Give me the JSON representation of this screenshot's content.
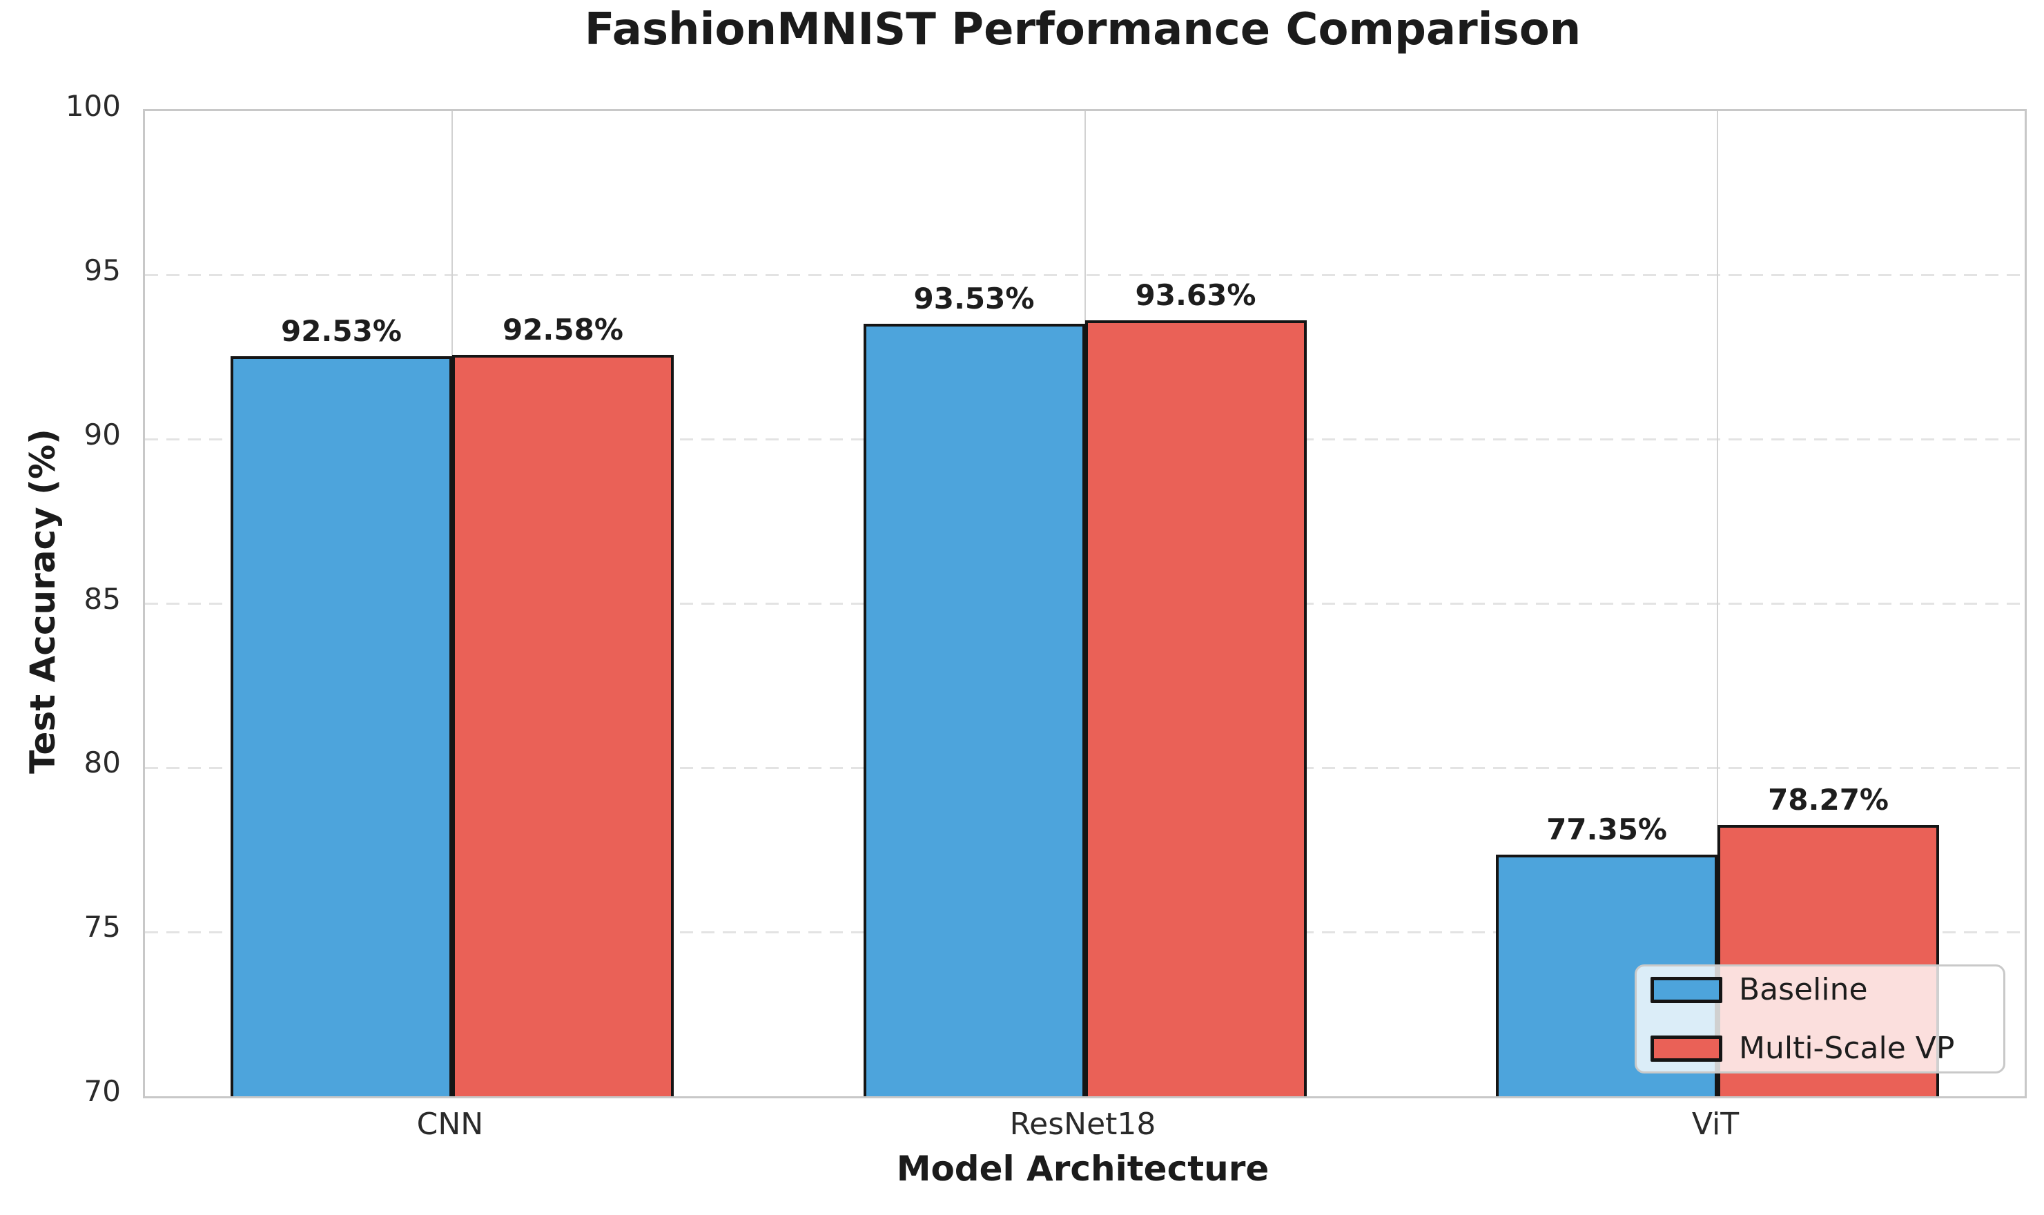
{
  "title": "FashionMNIST Performance Comparison",
  "chart_data": {
    "type": "bar",
    "title": "FashionMNIST Performance Comparison",
    "xlabel": "Model Architecture",
    "ylabel": "Test Accuracy (%)",
    "categories": [
      "CNN",
      "ResNet18",
      "ViT"
    ],
    "series": [
      {
        "name": "Baseline",
        "color": "#4DA4DC",
        "values": [
          92.53,
          93.53,
          77.35
        ]
      },
      {
        "name": "Multi-Scale VP",
        "color": "#EA6157",
        "values": [
          92.58,
          93.63,
          78.27
        ]
      }
    ],
    "value_labels": [
      [
        "92.53%",
        "93.53%",
        "77.35%"
      ],
      [
        "92.58%",
        "93.63%",
        "78.27%"
      ]
    ],
    "ylim": [
      70,
      100
    ],
    "yticks": [
      70,
      75,
      80,
      85,
      90,
      95,
      100
    ],
    "ytick_labels": [
      "70",
      "75",
      "80",
      "85",
      "90",
      "95",
      "100"
    ],
    "grid": true,
    "legend_position": "lower right",
    "bar_edge_color": "#151515"
  }
}
